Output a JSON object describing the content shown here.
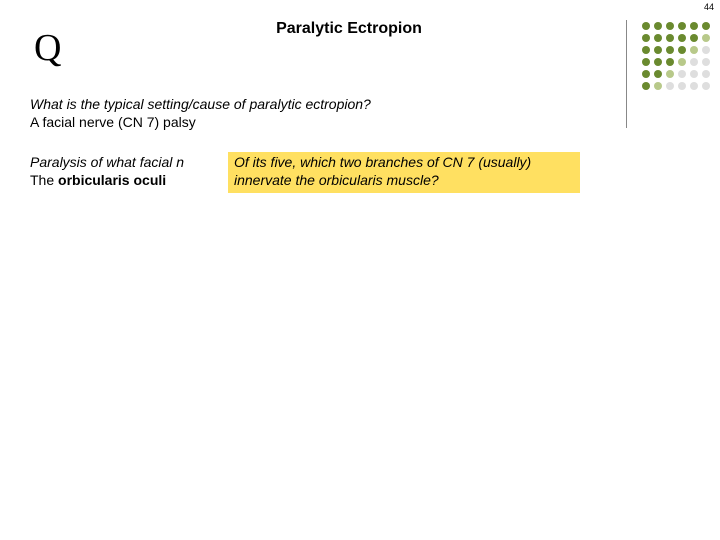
{
  "page_number": "44",
  "q_letter": "Q",
  "title": "Paralytic Ectropion",
  "block1": {
    "question": "What is the typical setting/cause of paralytic ectropion?",
    "answer": "A facial nerve (CN 7) palsy"
  },
  "block2": {
    "question_fragment": "Paralysis of what facial n",
    "answer_prefix": "The ",
    "answer_bold": "orbicularis oculi"
  },
  "overlay": {
    "line1": "Of its five, which two branches of CN 7 (usually)",
    "line2": "innervate the orbicularis muscle?"
  },
  "dots": {
    "colors": [
      [
        "#6a8a2f",
        "#6a8a2f",
        "#6a8a2f",
        "#6a8a2f",
        "#6a8a2f",
        "#6a8a2f"
      ],
      [
        "#6a8a2f",
        "#6a8a2f",
        "#6a8a2f",
        "#6a8a2f",
        "#6a8a2f",
        "#b8c98a"
      ],
      [
        "#6a8a2f",
        "#6a8a2f",
        "#6a8a2f",
        "#6a8a2f",
        "#b8c98a",
        "#dedede"
      ],
      [
        "#6a8a2f",
        "#6a8a2f",
        "#6a8a2f",
        "#b8c98a",
        "#dedede",
        "#dedede"
      ],
      [
        "#6a8a2f",
        "#6a8a2f",
        "#b8c98a",
        "#dedede",
        "#dedede",
        "#dedede"
      ],
      [
        "#6a8a2f",
        "#b8c98a",
        "#dedede",
        "#dedede",
        "#dedede",
        "#dedede"
      ]
    ],
    "dot_size": 8,
    "dot_gap": 4
  },
  "colors": {
    "background": "#ffffff",
    "overlay_bg": "#ffe061",
    "divider": "#888888",
    "text": "#000000"
  },
  "fonts": {
    "body_size_pt": 14,
    "title_size_pt": 16,
    "q_size_pt": 38,
    "pagenum_size_pt": 9
  }
}
